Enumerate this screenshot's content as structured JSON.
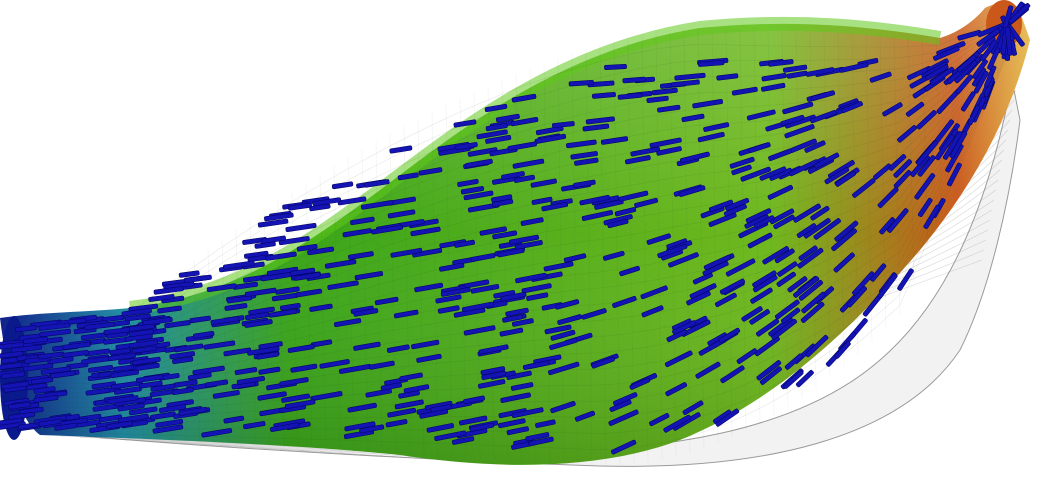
{
  "figure": {
    "subject": "muscle-mesh-visualization",
    "colormap": {
      "low": "#0a1a8c",
      "mid_low": "#1f8fa6",
      "mid": "#3aa51a",
      "mid_high": "#6fb81e",
      "high": "#c9581a",
      "peak": "#e2b23a"
    },
    "fiber_color": "#1414b4",
    "fiber_outline": "#05056a",
    "mesh_line_color": "#8a8a8a",
    "background": "#ffffff"
  }
}
